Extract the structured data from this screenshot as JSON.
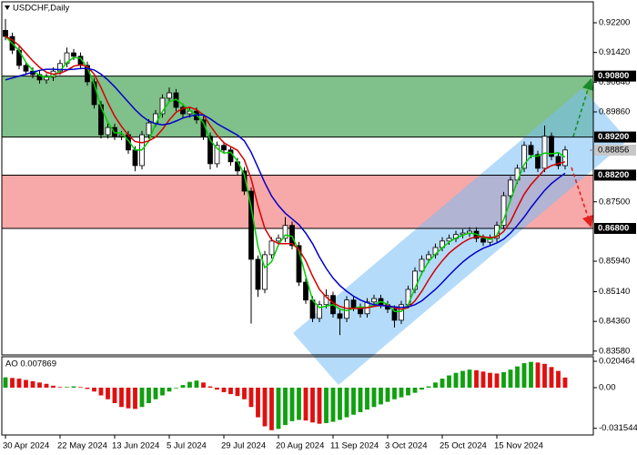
{
  "chart_data": [
    {
      "type": "candlestick",
      "title": "USDCHF,Daily",
      "categories": [
        "30 Apr 2024",
        null,
        null,
        null,
        null,
        null,
        null,
        null,
        "22 May 2024",
        null,
        null,
        null,
        null,
        null,
        null,
        null,
        "13 Jun 2024",
        null,
        null,
        null,
        null,
        null,
        null,
        null,
        "5 Jul 2024",
        null,
        null,
        null,
        null,
        null,
        null,
        null,
        "29 Jul 2024",
        null,
        null,
        null,
        null,
        null,
        null,
        null,
        "20 Aug 2024",
        null,
        null,
        null,
        null,
        null,
        null,
        null,
        "11 Sep 2024",
        null,
        null,
        null,
        null,
        null,
        null,
        null,
        "3 Oct 2024",
        null,
        null,
        null,
        null,
        null,
        null,
        null,
        "25 Oct 2024",
        null,
        null,
        null,
        null,
        null,
        null,
        null,
        "15 Nov 2024",
        null,
        null,
        null,
        null,
        null,
        null,
        null,
        null,
        null,
        null
      ],
      "open": [
        0.92,
        0.9184,
        0.9148,
        0.9108,
        0.9093,
        0.9084,
        0.907,
        0.9077,
        0.9093,
        0.9113,
        0.9141,
        0.9132,
        0.9108,
        0.9065,
        0.9005,
        0.8926,
        0.8945,
        0.8922,
        0.8926,
        0.8886,
        0.8845,
        0.8926,
        0.8957,
        0.8981,
        0.9022,
        0.9036,
        0.8998,
        0.8981,
        0.8988,
        0.8965,
        0.8922,
        0.885,
        0.8898,
        0.8886,
        0.8855,
        0.8831,
        0.8778,
        0.8599,
        0.852,
        0.8611,
        0.8647,
        0.8654,
        0.8688,
        0.8635,
        0.8539,
        0.8492,
        0.8444,
        0.848,
        0.8504,
        0.8456,
        0.8444,
        0.8492,
        0.8473,
        0.8456,
        0.8487,
        0.8496,
        0.848,
        0.8468,
        0.8439,
        0.848,
        0.852,
        0.8568,
        0.8599,
        0.8611,
        0.863,
        0.8647,
        0.8654,
        0.8664,
        0.8668,
        0.8673,
        0.8654,
        0.8644,
        0.8654,
        0.8688,
        0.8766,
        0.8807,
        0.8838,
        0.8898,
        0.8874,
        0.8838,
        0.8922,
        0.8869,
        0.8845
      ],
      "high": [
        0.923,
        0.9194,
        0.9158,
        0.9118,
        0.9103,
        0.9094,
        0.9087,
        0.9103,
        0.9123,
        0.9155,
        0.9151,
        0.9142,
        0.9118,
        0.9075,
        0.9015,
        0.8955,
        0.8955,
        0.8936,
        0.8936,
        0.8896,
        0.8936,
        0.8967,
        0.8991,
        0.9032,
        0.905,
        0.9046,
        0.9008,
        0.8998,
        0.8998,
        0.8975,
        0.8932,
        0.8908,
        0.8908,
        0.8896,
        0.8865,
        0.8841,
        0.8788,
        0.8609,
        0.8621,
        0.8657,
        0.8664,
        0.871,
        0.8698,
        0.8645,
        0.8549,
        0.8502,
        0.849,
        0.852,
        0.8514,
        0.8466,
        0.8502,
        0.8502,
        0.8483,
        0.8497,
        0.8506,
        0.8506,
        0.849,
        0.8478,
        0.849,
        0.853,
        0.8578,
        0.8609,
        0.8621,
        0.864,
        0.8657,
        0.8664,
        0.8674,
        0.8678,
        0.8683,
        0.8683,
        0.8664,
        0.8664,
        0.8698,
        0.8776,
        0.8817,
        0.8848,
        0.8908,
        0.8908,
        0.8884,
        0.895,
        0.8932,
        0.8879,
        0.8896
      ],
      "low": [
        0.9174,
        0.9138,
        0.9098,
        0.9083,
        0.9074,
        0.906,
        0.906,
        0.9067,
        0.9083,
        0.9103,
        0.9122,
        0.9098,
        0.9055,
        0.8995,
        0.8916,
        0.8916,
        0.8912,
        0.8912,
        0.8876,
        0.883,
        0.8835,
        0.8916,
        0.8947,
        0.8971,
        0.9012,
        0.8988,
        0.8971,
        0.8971,
        0.8955,
        0.8912,
        0.8835,
        0.884,
        0.8876,
        0.8845,
        0.8821,
        0.8768,
        0.843,
        0.85,
        0.851,
        0.8601,
        0.8637,
        0.8644,
        0.8625,
        0.8529,
        0.8482,
        0.8434,
        0.8434,
        0.847,
        0.8446,
        0.84,
        0.8434,
        0.8463,
        0.8446,
        0.8446,
        0.8477,
        0.847,
        0.8458,
        0.842,
        0.8429,
        0.847,
        0.851,
        0.8558,
        0.8589,
        0.8601,
        0.862,
        0.8637,
        0.8644,
        0.8654,
        0.8658,
        0.8644,
        0.8634,
        0.8634,
        0.8644,
        0.8678,
        0.8756,
        0.8797,
        0.8828,
        0.8864,
        0.8828,
        0.8828,
        0.8859,
        0.8835,
        0.8835
      ],
      "close": [
        0.9184,
        0.9148,
        0.9108,
        0.9093,
        0.9084,
        0.907,
        0.9077,
        0.9093,
        0.9113,
        0.9141,
        0.9132,
        0.9108,
        0.9065,
        0.9005,
        0.8926,
        0.8945,
        0.8922,
        0.8926,
        0.8886,
        0.8845,
        0.8926,
        0.8957,
        0.8981,
        0.9022,
        0.9036,
        0.8998,
        0.8981,
        0.8988,
        0.8965,
        0.8922,
        0.885,
        0.8898,
        0.8886,
        0.8855,
        0.8831,
        0.8778,
        0.8599,
        0.852,
        0.8611,
        0.8647,
        0.8654,
        0.8688,
        0.8635,
        0.8539,
        0.8492,
        0.8444,
        0.848,
        0.8504,
        0.8456,
        0.8444,
        0.8492,
        0.8473,
        0.8456,
        0.8487,
        0.8496,
        0.848,
        0.8468,
        0.8439,
        0.848,
        0.852,
        0.8568,
        0.8599,
        0.8611,
        0.863,
        0.8647,
        0.8654,
        0.8664,
        0.8668,
        0.8673,
        0.8654,
        0.8644,
        0.8654,
        0.8688,
        0.8766,
        0.8807,
        0.8838,
        0.8898,
        0.8874,
        0.8838,
        0.8922,
        0.8869,
        0.8845,
        0.8886
      ],
      "up_color": "#ffffff",
      "down_color": "#000000",
      "series": [
        {
          "color": "#00d000",
          "values": [
            0.9184,
            0.9166,
            0.9147,
            0.9116,
            0.9095,
            0.9082,
            0.9077,
            0.908,
            0.9094,
            0.9116,
            0.9129,
            0.9127,
            0.9102,
            0.9059,
            0.8999,
            0.8959,
            0.8931,
            0.8931,
            0.8911,
            0.8886,
            0.8886,
            0.8909,
            0.8955,
            0.8987,
            0.9013,
            0.9019,
            0.9005,
            0.8989,
            0.8978,
            0.8958,
            0.8912,
            0.889,
            0.8878,
            0.888,
            0.8857,
            0.8821,
            0.8736,
            0.8632,
            0.8577,
            0.8593,
            0.8637,
            0.8663,
            0.8659,
            0.8621,
            0.8555,
            0.8492,
            0.8472,
            0.8476,
            0.848,
            0.8468,
            0.8464,
            0.847,
            0.8474,
            0.8472,
            0.848,
            0.8488,
            0.8481,
            0.8462,
            0.8462,
            0.848,
            0.8523,
            0.8562,
            0.8593,
            0.8613,
            0.8629,
            0.8644,
            0.8655,
            0.8662,
            0.8668,
            0.8665,
            0.8657,
            0.8651,
            0.8662,
            0.8703,
            0.8754,
            0.8804,
            0.8848,
            0.887,
            0.887,
            0.8878,
            0.8876,
            0.8879,
            0.8867
          ]
        },
        {
          "color": "#d40000",
          "values": [
            0.9184,
            0.9175,
            0.916,
            0.914,
            0.912,
            0.9103,
            0.909,
            0.9085,
            0.9087,
            0.9095,
            0.9106,
            0.911,
            0.9105,
            0.9085,
            0.905,
            0.901,
            0.8975,
            0.8948,
            0.8925,
            0.8908,
            0.8905,
            0.891,
            0.892,
            0.894,
            0.8965,
            0.8985,
            0.8995,
            0.8998,
            0.8992,
            0.8978,
            0.895,
            0.8925,
            0.8905,
            0.8895,
            0.8885,
            0.886,
            0.881,
            0.874,
            0.868,
            0.865,
            0.864,
            0.864,
            0.864,
            0.8625,
            0.8595,
            0.8555,
            0.852,
            0.85,
            0.8485,
            0.8475,
            0.847,
            0.847,
            0.847,
            0.8472,
            0.8475,
            0.8478,
            0.8478,
            0.8472,
            0.8468,
            0.8472,
            0.849,
            0.8515,
            0.8545,
            0.8572,
            0.8595,
            0.8615,
            0.863,
            0.8643,
            0.8653,
            0.8658,
            0.8658,
            0.8656,
            0.8658,
            0.8672,
            0.8698,
            0.8735,
            0.877,
            0.8795,
            0.8815,
            0.8835,
            0.8845,
            0.885,
            0.8855
          ]
        },
        {
          "color": "#0000c8",
          "values": [
            0.907,
            0.9075,
            0.908,
            0.9085,
            0.909,
            0.9095,
            0.9098,
            0.9098,
            0.9097,
            0.9097,
            0.9098,
            0.91,
            0.91,
            0.9096,
            0.9085,
            0.907,
            0.9052,
            0.9032,
            0.9012,
            0.8992,
            0.8975,
            0.8962,
            0.8955,
            0.8952,
            0.8955,
            0.8962,
            0.897,
            0.8975,
            0.8978,
            0.8978,
            0.8968,
            0.8955,
            0.8945,
            0.8935,
            0.8925,
            0.891,
            0.888,
            0.884,
            0.88,
            0.8765,
            0.874,
            0.872,
            0.8705,
            0.869,
            0.8668,
            0.864,
            0.8605,
            0.8575,
            0.855,
            0.853,
            0.8515,
            0.8502,
            0.8492,
            0.8485,
            0.848,
            0.8478,
            0.8476,
            0.8474,
            0.8473,
            0.8474,
            0.848,
            0.849,
            0.8505,
            0.852,
            0.8538,
            0.8557,
            0.8575,
            0.8592,
            0.8606,
            0.8618,
            0.8628,
            0.8635,
            0.8642,
            0.8652,
            0.8668,
            0.8688,
            0.871,
            0.8735,
            0.8758,
            0.878,
            0.8798,
            0.8812,
            0.8825
          ]
        }
      ],
      "ylim": [
        0.8348,
        0.9275
      ],
      "yticks": [
        {
          "value": 0.922,
          "label": "0.92200"
        },
        {
          "value": 0.9142,
          "label": "0.91420"
        },
        {
          "value": 0.9064,
          "label": "0.90640"
        },
        {
          "value": 0.8986,
          "label": "0.89860"
        },
        {
          "value": 0.875,
          "label": "0.87500"
        },
        {
          "value": 0.8594,
          "label": "0.85940"
        },
        {
          "value": 0.8514,
          "label": "0.85140"
        },
        {
          "value": 0.8436,
          "label": "0.84360"
        },
        {
          "value": 0.8358,
          "label": "0.83580"
        }
      ],
      "levels": [
        {
          "value": 0.908,
          "label": "0.90800"
        },
        {
          "value": 0.892,
          "label": "0.89200"
        },
        {
          "value": 0.882,
          "label": "0.88200"
        },
        {
          "value": 0.868,
          "label": "0.86800"
        }
      ],
      "zone_colors": [
        "#80c08a",
        "#f7a8a8"
      ],
      "current_price": {
        "value": 0.88856,
        "label": "0.88856"
      }
    },
    {
      "type": "bar",
      "title": "AO 0.007869",
      "values": [
        0.008,
        0.0075,
        0.007,
        0.006,
        0.005,
        0.004,
        0.003,
        0.0015,
        0.0005,
        0.0005,
        0.001,
        0.0005,
        -0.001,
        -0.003,
        -0.006,
        -0.009,
        -0.012,
        -0.015,
        -0.016,
        -0.0165,
        -0.015,
        -0.012,
        -0.009,
        -0.006,
        -0.003,
        -0.0005,
        0.002,
        0.0045,
        0.0055,
        0.004,
        0.001,
        -0.0015,
        -0.0035,
        -0.005,
        -0.0065,
        -0.009,
        -0.015,
        -0.023,
        -0.03,
        -0.033,
        -0.032,
        -0.029,
        -0.026,
        -0.025,
        -0.0255,
        -0.027,
        -0.028,
        -0.0275,
        -0.0265,
        -0.025,
        -0.023,
        -0.021,
        -0.019,
        -0.017,
        -0.015,
        -0.013,
        -0.011,
        -0.009,
        -0.0075,
        -0.006,
        -0.004,
        -0.0015,
        0.001,
        0.004,
        0.007,
        0.0095,
        0.0115,
        0.013,
        0.014,
        0.0135,
        0.0125,
        0.0115,
        0.011,
        0.012,
        0.014,
        0.0165,
        0.019,
        0.02,
        0.0195,
        0.0185,
        0.016,
        0.013,
        0.007869
      ],
      "up_color": "#10a010",
      "down_color": "#e01010",
      "ylim": [
        -0.0367,
        0.024
      ],
      "yticks": [
        {
          "value": 0.020464,
          "label": "0.020464"
        },
        {
          "value": 0,
          "label": "0.00"
        },
        {
          "value": -0.031544,
          "label": "-0.031544"
        }
      ]
    }
  ]
}
